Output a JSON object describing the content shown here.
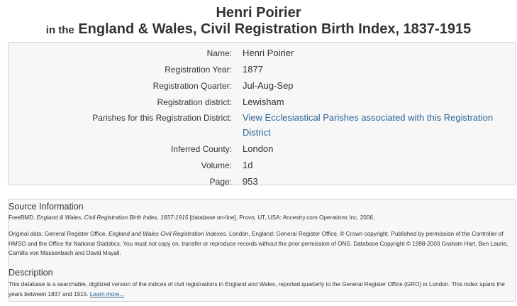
{
  "header": {
    "name": "Henri Poirier",
    "prefix": "in the",
    "collection": "England & Wales, Civil Registration Birth Index, 1837-1915"
  },
  "record": {
    "fields": [
      {
        "label": "Name:",
        "value": "Henri Poirier"
      },
      {
        "label": "Registration Year:",
        "value": "1877"
      },
      {
        "label": "Registration Quarter:",
        "value": "Jul-Aug-Sep"
      },
      {
        "label": "Registration district:",
        "value": "Lewisham"
      },
      {
        "label": "Parishes for this Registration District:",
        "value": "View Ecclesiastical Parishes associated with this Registration District"
      },
      {
        "label": "Inferred County:",
        "value": "London"
      },
      {
        "label": "Volume:",
        "value": "1d"
      },
      {
        "label": "Page:",
        "value": "953"
      }
    ]
  },
  "source": {
    "title": "Source Information",
    "citation_pre": "FreeBMD. ",
    "citation_italic": "England & Wales, Civil Registration Birth Index, 1837-1915",
    "citation_post": " [database on-line]. Provo, UT, USA: Ancestry.com Operations Inc, 2006.",
    "original_pre": "Original data: General Register Office. ",
    "original_italic": "England and Wales Civil Registration Indexes",
    "original_post": ". London, England: General Register Office. © Crown copyright. Published by permission of the Controller of HMSO and the Office for National Statistics. You must not copy on, transfer or reproduce records without the prior permission of ONS. Database Copyright © 1998-2003 Graham Hart, Ben Laurie, Camilla von Massenbach and David Mayall."
  },
  "description": {
    "title": "Description",
    "text": "This database is a searchable, digitized version of the indices of civil registrations in England and Wales, reported quarterly to the General Register Office (GRO) in London. This index spans the years between 1837 and 1915. ",
    "learn_more": "Learn more..."
  }
}
